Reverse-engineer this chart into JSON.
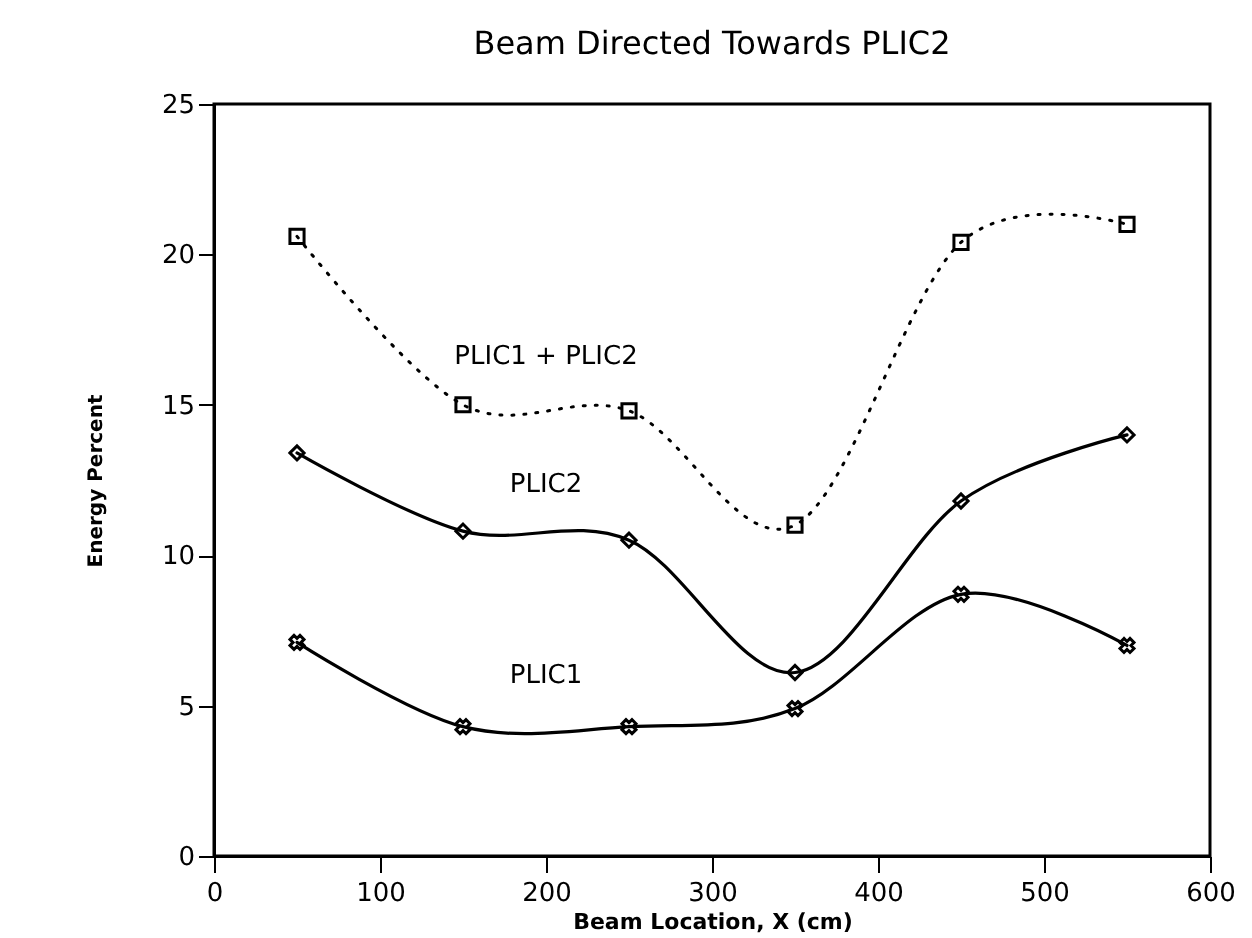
{
  "chart_data": {
    "type": "line",
    "title": "Beam Directed Towards PLIC2",
    "xlabel": "Beam Location, X (cm)",
    "ylabel": "Energy Percent",
    "x": [
      50,
      150,
      250,
      350,
      450,
      550
    ],
    "series": [
      {
        "name": "PLIC1",
        "color": "#000000",
        "marker": "cross",
        "line_style": "solid",
        "values": [
          7.1,
          4.3,
          4.3,
          4.9,
          8.7,
          7.0
        ]
      },
      {
        "name": "PLIC2",
        "color": "#000000",
        "marker": "diamond",
        "line_style": "solid",
        "values": [
          13.4,
          10.8,
          10.5,
          6.1,
          11.8,
          14.0
        ]
      },
      {
        "name": "PLIC1 + PLIC2",
        "color": "#000000",
        "marker": "square",
        "line_style": "dotted",
        "values": [
          20.6,
          15.0,
          14.8,
          11.0,
          20.4,
          21.0
        ]
      }
    ],
    "xlim": [
      0,
      600
    ],
    "xticks": [
      0,
      100,
      200,
      300,
      400,
      500,
      600
    ],
    "ylim": [
      0,
      25
    ],
    "yticks": [
      0,
      5,
      10,
      15,
      20,
      25
    ]
  }
}
